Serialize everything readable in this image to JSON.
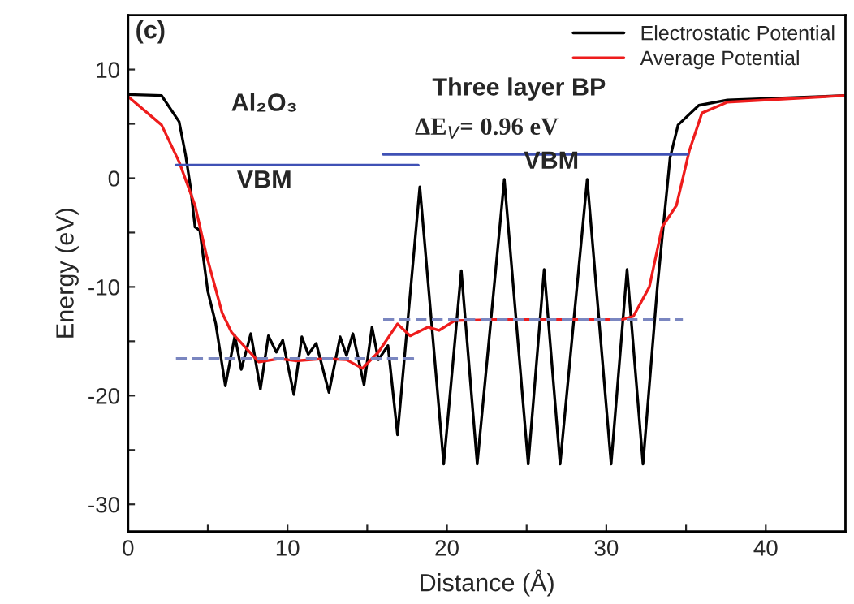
{
  "chart_data": {
    "type": "line",
    "xlabel": "Distance (Å)",
    "ylabel": "Energy (eV)",
    "xlim": [
      0,
      45
    ],
    "ylim": [
      -32.5,
      15
    ],
    "xticks": [
      0,
      {
        "value": 5,
        "label": null
      },
      10,
      {
        "value": 15,
        "label": null
      },
      20,
      {
        "value": 25,
        "label": null
      },
      30,
      {
        "value": 35,
        "label": null
      },
      40
    ],
    "yticks": [
      -30,
      {
        "value": -25,
        "label": null
      },
      -20,
      {
        "value": -15,
        "label": null
      },
      -10,
      {
        "value": -5,
        "label": null
      },
      0,
      {
        "value": 5,
        "label": null
      },
      10
    ],
    "grid": false,
    "legend": "top right",
    "line_style": "solid",
    "marker": "none",
    "series": [
      {
        "name": "Electrostatic Potential",
        "color": "#000000",
        "x": [
          0,
          2.1,
          3.2,
          3.6,
          3.9,
          4.2,
          4.5,
          4.8,
          5.0,
          5.5,
          6.1,
          6.7,
          7.1,
          7.7,
          8.3,
          8.8,
          9.3,
          9.7,
          10.4,
          10.9,
          11.3,
          11.8,
          12.6,
          13.3,
          13.7,
          14.1,
          14.8,
          15.3,
          15.7,
          16.3,
          16.9,
          18.3,
          19.8,
          20.9,
          21.9,
          23.6,
          25.1,
          26.1,
          27.1,
          28.8,
          30.3,
          31.3,
          32.3,
          33.2,
          34.0,
          34.5,
          35.8,
          37.6,
          45.0
        ],
        "values": [
          7.7,
          7.6,
          5.2,
          2.2,
          -0.7,
          -4.5,
          -4.8,
          -8.2,
          -10.4,
          -13.4,
          -19.1,
          -14.5,
          -17.6,
          -14.3,
          -19.4,
          -14.5,
          -16.0,
          -14.9,
          -19.9,
          -14.6,
          -16.2,
          -15.2,
          -19.7,
          -14.6,
          -16.3,
          -14.3,
          -19.0,
          -13.7,
          -16.7,
          -15.4,
          -23.6,
          -0.8,
          -26.3,
          -8.5,
          -26.3,
          -0.1,
          -26.3,
          -8.4,
          -26.3,
          -0.1,
          -26.3,
          -8.4,
          -26.3,
          -10.0,
          1.9,
          4.9,
          6.7,
          7.2,
          7.6
        ]
      },
      {
        "name": "Average Potential",
        "color": "#ee1c1c",
        "x": [
          0,
          2.1,
          3.2,
          4.2,
          4.9,
          5.9,
          6.5,
          8.2,
          9.5,
          10.5,
          12.3,
          13.7,
          14.7,
          15.7,
          16.9,
          17.7,
          18.8,
          19.5,
          20.5,
          23.0,
          26.0,
          31.0,
          31.7,
          32.7,
          33.5,
          34.4,
          35.2,
          36.0,
          37.6,
          45.0
        ],
        "values": [
          7.5,
          4.9,
          1.5,
          -2.5,
          -7.0,
          -12.4,
          -14.2,
          -16.9,
          -16.6,
          -16.8,
          -16.6,
          -16.7,
          -17.5,
          -16.0,
          -13.4,
          -14.5,
          -13.7,
          -14.0,
          -13.1,
          -13.0,
          -13.0,
          -13.0,
          -12.7,
          -10.0,
          -4.5,
          -2.5,
          2.5,
          6.0,
          7.0,
          7.6
        ]
      },
      {
        "color": "#3f51b5",
        "x": [
          3.0,
          18.2
        ],
        "values": [
          1.2,
          1.2
        ]
      },
      {
        "color": "#3f51b5",
        "x": [
          16.0,
          35.1
        ],
        "values": [
          2.2,
          2.2
        ]
      },
      {
        "color": "#7a86c0",
        "x": [
          3.0,
          18.0
        ],
        "values": [
          -16.6,
          -16.6
        ],
        "line_style": "dashed"
      },
      {
        "color": "#7a86c0",
        "x": [
          16.0,
          34.8
        ],
        "values": [
          -13.0,
          -13.0
        ],
        "line_style": "dashed"
      }
    ],
    "annotations": [
      "(c)",
      "Al₂O₃",
      "Three layer BP",
      "ΔE$_{V}$= 0.96 eV",
      "VBM",
      "VBM"
    ]
  }
}
